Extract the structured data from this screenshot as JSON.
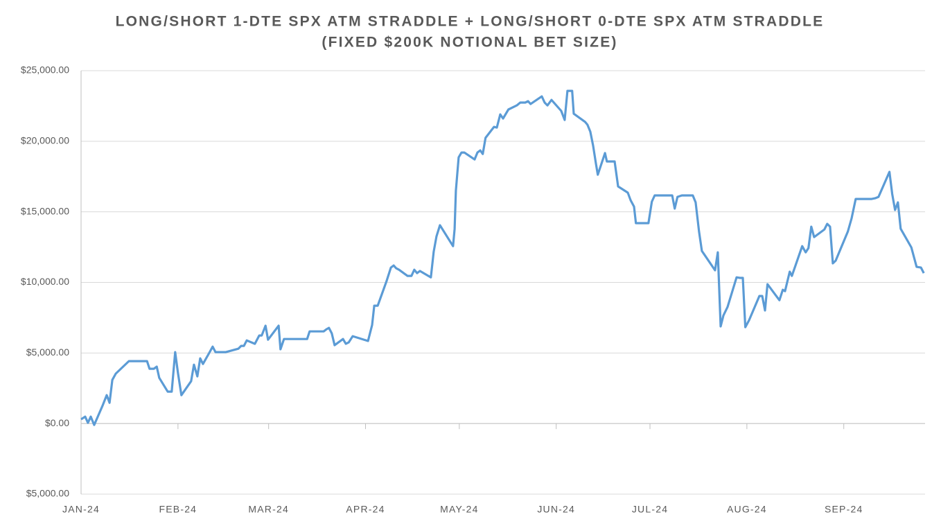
{
  "chart_data": {
    "type": "line",
    "title": [
      "LONG/SHORT 1-DTE SPX ATM STRADDLE + LONG/SHORT 0-DTE SPX ATM STRADDLE",
      "(FIXED $200K NOTIONAL BET SIZE)"
    ],
    "xlim": [
      0,
      270
    ],
    "xticks": [
      {
        "value": 0,
        "label": "JAN-24"
      },
      {
        "value": 31,
        "label": "FEB-24"
      },
      {
        "value": 60,
        "label": "MAR-24"
      },
      {
        "value": 91,
        "label": "APR-24"
      },
      {
        "value": 121,
        "label": "MAY-24"
      },
      {
        "value": 152,
        "label": "JUN-24"
      },
      {
        "value": 182,
        "label": "JUL-24"
      },
      {
        "value": 213,
        "label": "AUG-24"
      },
      {
        "value": 244,
        "label": "SEP-24"
      }
    ],
    "ylim": [
      -5000,
      25000
    ],
    "yticks": [
      {
        "value": -5000,
        "label": "$5,000.00"
      },
      {
        "value": 0,
        "label": "$0.00"
      },
      {
        "value": 5000,
        "label": "$5,000.00"
      },
      {
        "value": 10000,
        "label": "$10,000.00"
      },
      {
        "value": 15000,
        "label": "$15,000.00"
      },
      {
        "value": 20000,
        "label": "$20,000.00"
      },
      {
        "value": 25000,
        "label": "$25,000.00"
      }
    ],
    "negative_tick_color": "#c00000",
    "grid": true,
    "series": [
      {
        "color": "#5b9bd5",
        "x": [
          0,
          1.3,
          2.2,
          3.1,
          4.2,
          6.9,
          8.2,
          9.1,
          10.0,
          11.1,
          15.3,
          21.1,
          21.9,
          23.3,
          24.2,
          25.0,
          27.7,
          29.0,
          30.1,
          31.0,
          32.1,
          35.2,
          36.1,
          37.2,
          38.1,
          39.0,
          41.0,
          42.1,
          43.0,
          46.3,
          50.3,
          51.2,
          52.1,
          53.0,
          55.6,
          57.0,
          57.8,
          59.0,
          59.8,
          63.2,
          63.8,
          64.9,
          72.3,
          73.1,
          77.6,
          78.5,
          79.3,
          80.2,
          81.1,
          83.8,
          84.7,
          85.6,
          86.9,
          91.8,
          93.1,
          93.8,
          94.9,
          97.7,
          99.1,
          100.0,
          100.8,
          101.7,
          104.4,
          105.7,
          106.6,
          107.5,
          108.4,
          111.9,
          112.8,
          113.7,
          114.8,
          119.0,
          119.5,
          119.9,
          120.8,
          121.7,
          122.6,
          125.9,
          126.8,
          127.7,
          128.5,
          129.4,
          132.1,
          133.0,
          134.1,
          135.0,
          136.7,
          139.4,
          140.5,
          142.1,
          143.0,
          143.8,
          147.4,
          148.3,
          149.2,
          150.5,
          153.6,
          154.7,
          155.6,
          157.1,
          157.6,
          161.3,
          162.0,
          162.9,
          163.8,
          164.7,
          165.3,
          167.6,
          168.2,
          170.7,
          171.8,
          174.9,
          175.8,
          176.9,
          177.5,
          181.5,
          182.6,
          183.5,
          189.1,
          189.9,
          190.8,
          192.2,
          195.7,
          196.6,
          197.7,
          198.6,
          202.8,
          203.7,
          204.6,
          205.5,
          206.8,
          209.7,
          210.8,
          211.7,
          212.5,
          213.7,
          217.0,
          217.9,
          218.8,
          219.6,
          223.4,
          224.5,
          225.2,
          226.7,
          227.4,
          230.7,
          231.8,
          232.7,
          233.6,
          234.5,
          235.4,
          237.8,
          238.7,
          239.6,
          240.5,
          241.4,
          245.3,
          246.5,
          247.8,
          252.9,
          254.0,
          255.1,
          258.6,
          259.5,
          260.4,
          261.3,
          262.2,
          265.6,
          267.3,
          268.7,
          269.6
        ],
        "values": [
          300,
          490,
          50,
          490,
          -100,
          1280,
          2010,
          1470,
          3090,
          3540,
          4420,
          4420,
          3880,
          3880,
          4030,
          3240,
          2260,
          2260,
          5060,
          3590,
          2010,
          3000,
          4170,
          3340,
          4620,
          4220,
          5010,
          5450,
          5060,
          5060,
          5300,
          5500,
          5500,
          5890,
          5650,
          6240,
          6240,
          6930,
          5940,
          6930,
          5260,
          5990,
          5990,
          6530,
          6530,
          6680,
          6780,
          6390,
          5550,
          5990,
          5650,
          5750,
          6190,
          5850,
          6980,
          8350,
          8350,
          10070,
          11050,
          11200,
          11000,
          10900,
          10460,
          10460,
          10900,
          10660,
          10810,
          10360,
          12180,
          13260,
          14050,
          12570,
          13800,
          16500,
          18860,
          19200,
          19200,
          18710,
          19200,
          19350,
          19100,
          20240,
          21020,
          20970,
          21900,
          21610,
          22250,
          22540,
          22740,
          22740,
          22840,
          22640,
          23180,
          22740,
          22540,
          22930,
          22150,
          21510,
          23570,
          23570,
          21950,
          21360,
          21170,
          20680,
          19700,
          18420,
          17630,
          19160,
          18570,
          18570,
          16800,
          16360,
          15820,
          15370,
          14200,
          14200,
          15720,
          16160,
          16160,
          15230,
          16060,
          16160,
          16160,
          15670,
          13610,
          12230,
          10860,
          12130,
          6880,
          7660,
          8250,
          10360,
          10320,
          10320,
          6830,
          7320,
          9040,
          9040,
          8010,
          9870,
          8740,
          9480,
          9380,
          10760,
          10460,
          12570,
          12130,
          12430,
          13950,
          13210,
          13360,
          13750,
          14150,
          13950,
          11350,
          11540,
          13610,
          14540,
          15910,
          15910,
          15960,
          16060,
          17830,
          16260,
          15130,
          15670,
          13800,
          12480,
          11100,
          11050,
          10660
        ]
      }
    ]
  }
}
